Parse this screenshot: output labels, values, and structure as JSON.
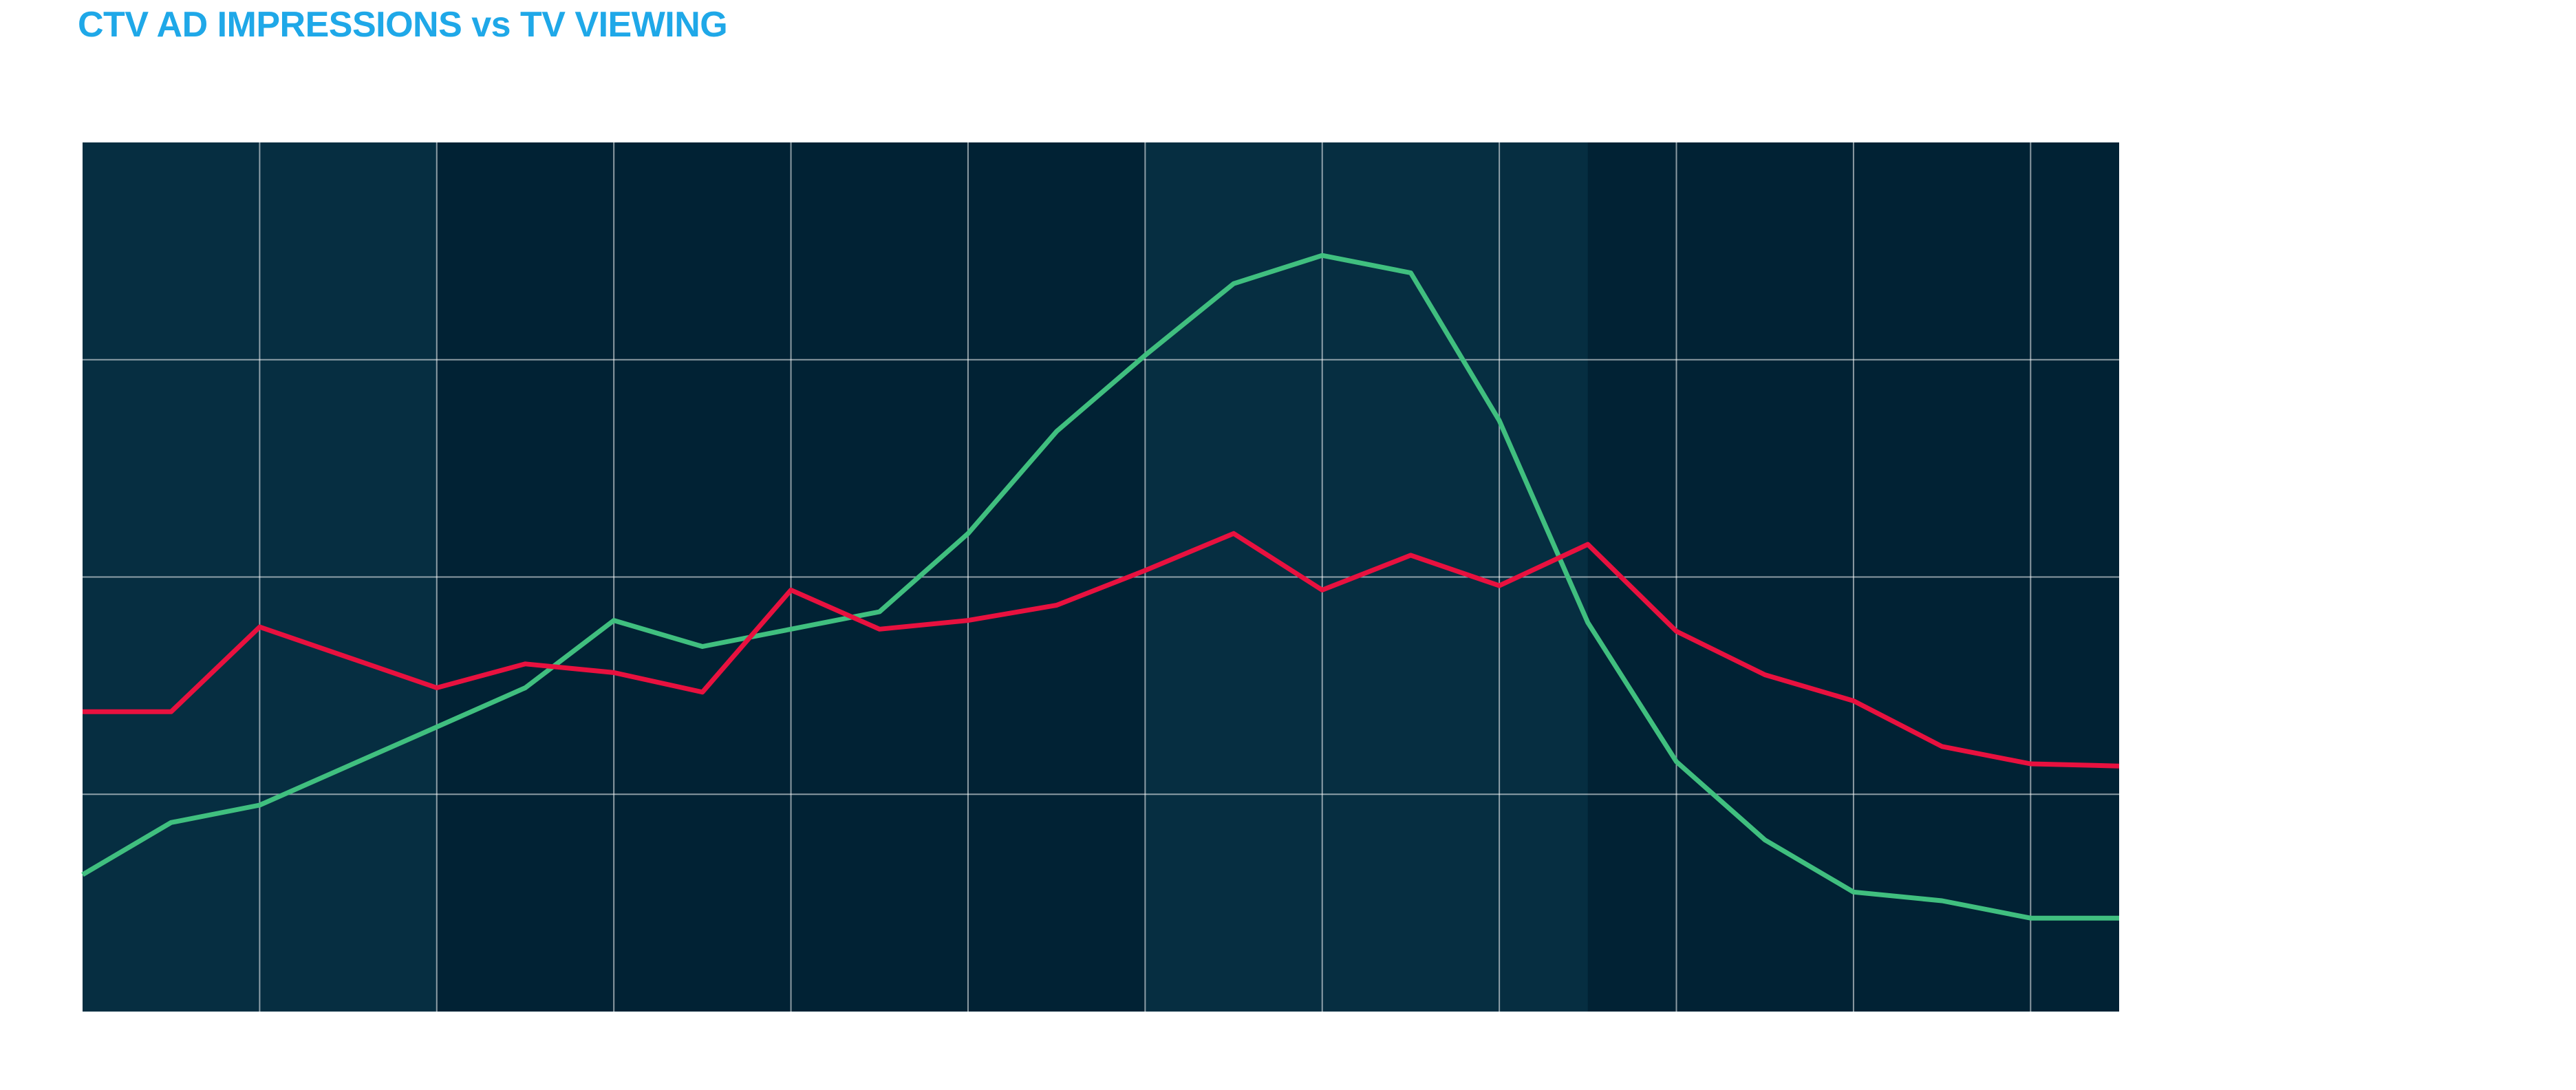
{
  "title": "CTV AD IMPRESSIONS vs TV VIEWING",
  "colors": {
    "title": "#1fa8e8",
    "plot_dark": "#012234",
    "plot_light": "#062e41",
    "plot_mid": "#05293b",
    "grid": "#ffffff",
    "ctv_line": "#40bf7f",
    "tv_line": "#e8113f"
  },
  "chart_data": {
    "type": "line",
    "title": "CTV AD IMPRESSIONS vs TV VIEWING",
    "xlabel": "",
    "ylabel": "",
    "x": [
      0,
      0.5,
      1,
      1.5,
      2,
      2.5,
      3,
      3.5,
      4,
      4.5,
      5,
      5.5,
      6,
      6.5,
      7,
      7.5,
      8,
      8.5,
      9,
      9.5,
      10,
      10.5,
      11,
      11.5
    ],
    "xlim": [
      0,
      11.5
    ],
    "ylim": [
      0,
      4
    ],
    "grid": true,
    "x_gridlines": [
      1,
      2,
      3,
      4,
      5,
      6,
      7,
      8,
      9,
      10,
      11
    ],
    "y_gridlines": [
      1,
      2,
      3
    ],
    "background_bands": [
      {
        "from": 0,
        "to": 2,
        "shade": "light"
      },
      {
        "from": 2,
        "to": 6,
        "shade": "dark"
      },
      {
        "from": 6,
        "to": 8.5,
        "shade": "light"
      },
      {
        "from": 8.5,
        "to": 11.5,
        "shade": "dark"
      }
    ],
    "series": [
      {
        "color": "#40bf7f",
        "values": [
          0.63,
          0.87,
          0.95,
          1.13,
          1.31,
          1.49,
          1.8,
          1.68,
          1.76,
          1.84,
          2.2,
          2.67,
          3.02,
          3.35,
          3.48,
          3.4,
          2.72,
          1.79,
          1.15,
          0.79,
          0.55,
          0.51,
          0.43,
          0.43
        ]
      },
      {
        "color": "#e8113f",
        "values": [
          1.38,
          1.38,
          1.77,
          1.63,
          1.49,
          1.6,
          1.56,
          1.47,
          1.94,
          1.76,
          1.8,
          1.87,
          2.03,
          2.2,
          1.94,
          2.1,
          1.96,
          2.15,
          1.75,
          1.55,
          1.43,
          1.22,
          1.14,
          1.13
        ]
      }
    ]
  }
}
